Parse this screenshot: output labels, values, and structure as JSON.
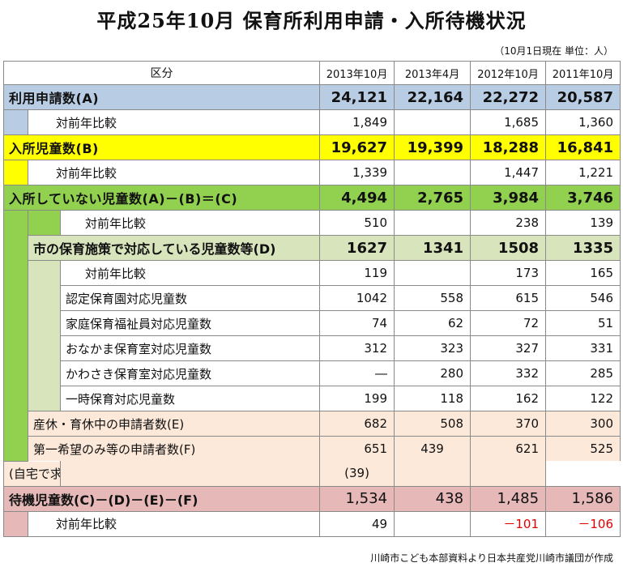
{
  "title": "平成25年10月  保育所利用申請・入所待機状況",
  "note": "（10月1日現在  単位：人）",
  "footer": "川崎市こども本部資料より日本共産党川崎市議団が作成",
  "header": {
    "category": "区分",
    "cols": [
      "2013年10月",
      "2013年4月",
      "2012年10月",
      "2011年10月"
    ]
  },
  "rows": {
    "applications": {
      "label": "利用申請数(A)",
      "values": [
        "24,121",
        "22,164",
        "22,272",
        "20,587"
      ]
    },
    "applications_yoy": {
      "label": "対前年比較",
      "values": [
        "1,849",
        "",
        "1,685",
        "1,360"
      ]
    },
    "admitted": {
      "label": "入所児童数(B)",
      "values": [
        "19,627",
        "19,399",
        "18,288",
        "16,841"
      ]
    },
    "admitted_yoy": {
      "label": "対前年比較",
      "values": [
        "1,339",
        "",
        "1,447",
        "1,221"
      ]
    },
    "not_admitted": {
      "label": "入所していない児童数(A)－(B)＝(C)",
      "values": [
        "4,494",
        "2,765",
        "3,984",
        "3,746"
      ]
    },
    "not_admitted_yoy": {
      "label": "対前年比較",
      "values": [
        "510",
        "",
        "238",
        "139"
      ]
    },
    "city_measures": {
      "label": "市の保育施策で対応している児童数等(D)",
      "values": [
        "1627",
        "1341",
        "1508",
        "1335"
      ]
    },
    "city_measures_yoy": {
      "label": "対前年比較",
      "values": [
        "119",
        "",
        "173",
        "165"
      ]
    },
    "certified": {
      "label": "認定保育園対応児童数",
      "values": [
        "1042",
        "558",
        "615",
        "546"
      ]
    },
    "family_care": {
      "label": "家庭保育福祉員対応児童数",
      "values": [
        "74",
        "62",
        "72",
        "51"
      ]
    },
    "onakama": {
      "label": "おなかま保育室対応児童数",
      "values": [
        "312",
        "323",
        "327",
        "331"
      ]
    },
    "kawasaki": {
      "label": "かわさき保育室対応児童数",
      "values": [
        "―",
        "280",
        "332",
        "285"
      ]
    },
    "temporary": {
      "label": "一時保育対応児童数",
      "values": [
        "199",
        "118",
        "162",
        "122"
      ]
    },
    "parental_leave": {
      "label": "産休・育休中の申請者数(E)",
      "values": [
        "682",
        "508",
        "370",
        "300"
      ]
    },
    "first_choice": {
      "label": "第一希望のみ等の申請者数(F)",
      "values": [
        "651",
        "439",
        "621",
        "525"
      ]
    },
    "job_seeking": {
      "label": "(自宅で求職活動を行う申請者数)",
      "values": [
        "",
        "(39)",
        "",
        ""
      ]
    },
    "waiting": {
      "label": "待機児童数(C)－(D)－(E)－(F)",
      "values": [
        "1,534",
        "438",
        "1,485",
        "1,586"
      ]
    },
    "waiting_yoy": {
      "label": "対前年比較",
      "values": [
        "49",
        "",
        "－101",
        "－106"
      ]
    }
  }
}
